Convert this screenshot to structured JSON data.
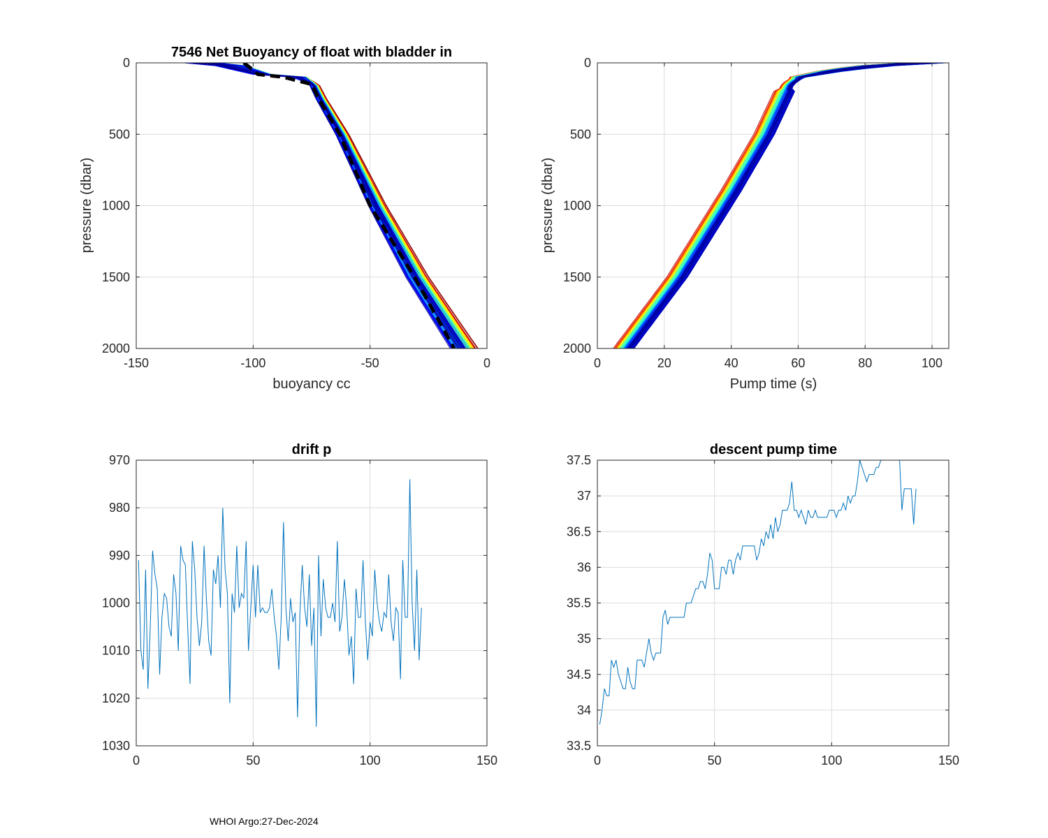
{
  "footer": "WHOI Argo:27-Dec-2024",
  "chart_data": [
    {
      "type": "line",
      "title": "7546 Net Buoyancy of float with bladder in",
      "xlabel": "buoyancy cc",
      "ylabel": "pressure (dbar)",
      "xlim": [
        -150,
        0
      ],
      "ylim": [
        0,
        2000
      ],
      "y_reversed": true,
      "xticks": [
        "-150",
        "-100",
        "-50",
        "0"
      ],
      "yticks": [
        "0",
        "500",
        "1000",
        "1500",
        "2000"
      ],
      "grid": true,
      "profile_count": 136,
      "colormap": "jet",
      "profile_template": {
        "pressure": [
          0,
          10,
          50,
          80,
          100,
          150,
          250,
          500,
          1000,
          1500,
          2000
        ],
        "buoyancy": [
          -122,
          -112,
          -103,
          -96,
          -80,
          -74,
          -71,
          -62,
          -47,
          -30,
          -10
        ]
      },
      "mean_profile": {
        "pressure": [
          0,
          50,
          80,
          100,
          150,
          250,
          500,
          1000,
          1500,
          2000
        ],
        "buoyancy": [
          -104,
          -100,
          -98,
          -87,
          -75,
          -72,
          -63,
          -50,
          -31,
          -14
        ],
        "style": "black dashed"
      }
    },
    {
      "type": "line",
      "title": "",
      "xlabel": "Pump time (s)",
      "ylabel": "pressure (dbar)",
      "xlim": [
        0,
        105
      ],
      "ylim": [
        0,
        2000
      ],
      "y_reversed": true,
      "xticks": [
        "0",
        "20",
        "40",
        "60",
        "80",
        "100"
      ],
      "yticks": [
        "0",
        "500",
        "1000",
        "1500",
        "2000"
      ],
      "grid": true,
      "profile_count": 136,
      "colormap": "jet",
      "profile_template": {
        "pressure": [
          0,
          10,
          50,
          100,
          150,
          250,
          500,
          900,
          1500,
          2000
        ],
        "pump_time": [
          98,
          88,
          72,
          60,
          57,
          55,
          50,
          40,
          24,
          8
        ]
      }
    },
    {
      "type": "line",
      "title": "drift p",
      "xlabel": "",
      "ylabel": "",
      "xlim": [
        0,
        150
      ],
      "ylim": [
        970,
        1030
      ],
      "y_reversed": true,
      "xticks": [
        "0",
        "50",
        "100",
        "150"
      ],
      "yticks": [
        "970",
        "980",
        "990",
        "1000",
        "1010",
        "1020",
        "1030"
      ],
      "grid": true,
      "series": [
        {
          "color": "#0072bd",
          "x_start": 1,
          "values": [
            991,
            1010,
            1014,
            993,
            1018,
            1005,
            989,
            994,
            997,
            1015,
            1003,
            998,
            999,
            1005,
            1007,
            994,
            998,
            1010,
            988,
            991,
            992,
            1005,
            1017,
            987,
            993,
            1003,
            1009,
            1004,
            988,
            999,
            1008,
            1011,
            993,
            996,
            990,
            1001,
            980,
            993,
            998,
            1021,
            998,
            1002,
            988,
            1001,
            998,
            999,
            987,
            1010,
            1001,
            992,
            1003,
            992,
            1002,
            1001,
            1002,
            1002,
            1001,
            997,
            1003,
            1007,
            1014,
            1003,
            983,
            1001,
            1008,
            999,
            1004,
            1002,
            1024,
            1002,
            992,
            1001,
            1005,
            994,
            1009,
            1001,
            1026,
            990,
            1007,
            995,
            1001,
            1003,
            1003,
            1000,
            1004,
            987,
            1006,
            1003,
            995,
            1001,
            1011,
            1007,
            1017,
            997,
            1003,
            1003,
            991,
            1004,
            1012,
            1004,
            1007,
            993,
            1000,
            1004,
            1006,
            1002,
            1003,
            994,
            1004,
            1008,
            1001,
            1002,
            1016,
            991,
            1003,
            1003,
            974,
            1000,
            1010,
            993,
            1012,
            1001
          ]
        }
      ]
    },
    {
      "type": "line",
      "title": "descent pump time",
      "xlabel": "",
      "ylabel": "",
      "xlim": [
        0,
        150
      ],
      "ylim": [
        33.5,
        37.5
      ],
      "xticks": [
        "0",
        "50",
        "100",
        "150"
      ],
      "yticks": [
        "33.5",
        "34",
        "34.5",
        "35",
        "35.5",
        "36",
        "36.5",
        "37",
        "37.5"
      ],
      "grid": true,
      "series": [
        {
          "color": "#0072bd",
          "x_start": 1,
          "values": [
            33.8,
            34.0,
            34.3,
            34.2,
            34.2,
            34.7,
            34.6,
            34.7,
            34.5,
            34.4,
            34.3,
            34.3,
            34.6,
            34.4,
            34.3,
            34.3,
            34.7,
            34.7,
            34.7,
            34.6,
            34.8,
            35.0,
            34.8,
            34.7,
            34.8,
            34.8,
            34.8,
            35.3,
            35.4,
            35.2,
            35.3,
            35.3,
            35.3,
            35.3,
            35.3,
            35.3,
            35.3,
            35.5,
            35.5,
            35.5,
            35.6,
            35.7,
            35.7,
            35.8,
            35.8,
            35.7,
            35.9,
            36.2,
            36.1,
            35.7,
            35.7,
            35.7,
            36.0,
            36.0,
            35.9,
            36.1,
            36.1,
            35.9,
            36.1,
            36.2,
            36.1,
            36.3,
            36.3,
            36.3,
            36.3,
            36.3,
            36.3,
            36.1,
            36.2,
            36.4,
            36.3,
            36.5,
            36.4,
            36.6,
            36.4,
            36.7,
            36.5,
            36.6,
            36.8,
            36.8,
            36.8,
            36.9,
            37.2,
            36.8,
            36.8,
            36.7,
            36.8,
            36.7,
            36.6,
            36.8,
            36.7,
            36.7,
            36.8,
            36.7,
            36.7,
            36.7,
            36.7,
            36.7,
            36.8,
            36.8,
            36.8,
            36.7,
            36.8,
            36.8,
            36.9,
            36.8,
            37.0,
            36.9,
            37.0,
            37.0,
            37.2,
            37.5,
            37.4,
            37.3,
            37.2,
            37.3,
            37.3,
            37.3,
            37.4,
            37.4,
            37.5,
            37.5,
            37.5,
            37.5,
            37.6,
            37.7,
            37.6,
            37.6,
            37.5,
            36.8,
            37.1,
            37.1,
            37.1,
            37.1,
            36.6,
            37.1
          ]
        }
      ]
    }
  ]
}
